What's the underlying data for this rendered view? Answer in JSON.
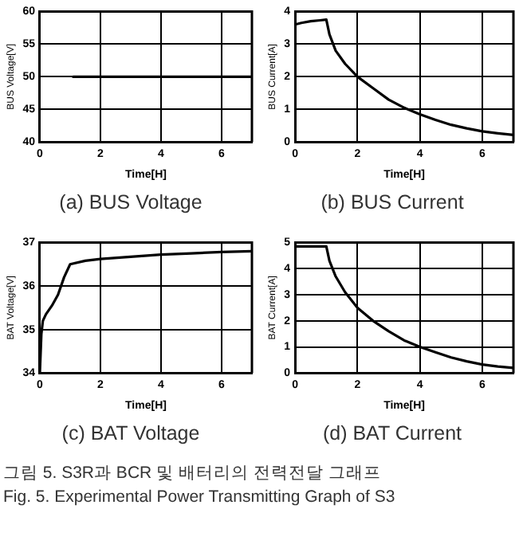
{
  "chart_data": [
    {
      "type": "line",
      "title": "(a) BUS Voltage",
      "xlabel": "Time[H]",
      "ylabel": "BUS Voltage[V]",
      "xlim": [
        0,
        7
      ],
      "xticks": [
        0,
        2,
        4,
        6
      ],
      "ylim": [
        40,
        60
      ],
      "yticks": [
        40,
        45,
        50,
        55,
        60
      ],
      "grid": true,
      "legend": false,
      "marker": "none",
      "line_style": "solid",
      "series": [
        {
          "color": "#000000",
          "x": [
            1.1,
            7
          ],
          "values": [
            50,
            50
          ]
        }
      ],
      "annotations": [
        "그림 5. S3R과 BCR 및 배터리의 전력전달 그래프",
        "Fig. 5. Experimental Power Transmitting Graph of S3"
      ]
    },
    {
      "type": "line",
      "title": "(b) BUS Current",
      "xlabel": "Time[H]",
      "ylabel": "BUS Current[A]",
      "xlim": [
        0,
        7
      ],
      "xticks": [
        0,
        2,
        4,
        6
      ],
      "ylim": [
        0,
        4
      ],
      "yticks": [
        0,
        1,
        2,
        3,
        4
      ],
      "grid": true,
      "legend": false,
      "marker": "none",
      "line_style": "solid",
      "series": [
        {
          "color": "#000000",
          "x": [
            0,
            0.2,
            0.5,
            0.8,
            1.0,
            1.1,
            1.3,
            1.6,
            2,
            2.5,
            3,
            3.5,
            4,
            4.5,
            5,
            5.5,
            6,
            6.5,
            7
          ],
          "values": [
            3.6,
            3.65,
            3.7,
            3.73,
            3.75,
            3.3,
            2.8,
            2.4,
            2.0,
            1.65,
            1.3,
            1.05,
            0.85,
            0.68,
            0.53,
            0.42,
            0.33,
            0.27,
            0.22
          ]
        }
      ]
    },
    {
      "type": "line",
      "title": "(c) BAT Voltage",
      "xlabel": "Time[H]",
      "ylabel": "BAT Voltage[V]",
      "xlim": [
        0,
        7
      ],
      "xticks": [
        0,
        2,
        4,
        6
      ],
      "ylim": [
        34,
        37
      ],
      "yticks": [
        34,
        35,
        36,
        37
      ],
      "grid": true,
      "legend": false,
      "marker": "none",
      "line_style": "solid",
      "series": [
        {
          "color": "#000000",
          "x": [
            0,
            0.05,
            0.1,
            0.2,
            0.4,
            0.6,
            0.8,
            1.0,
            1.5,
            2,
            3,
            4,
            5,
            6,
            7
          ],
          "values": [
            34.0,
            34.9,
            35.2,
            35.35,
            35.55,
            35.8,
            36.2,
            36.5,
            36.58,
            36.62,
            36.67,
            36.72,
            36.75,
            36.78,
            36.8
          ]
        }
      ]
    },
    {
      "type": "line",
      "title": "(d) BAT Current",
      "xlabel": "Time[H]",
      "ylabel": "BAT Current[A]",
      "xlim": [
        0,
        7
      ],
      "xticks": [
        0,
        2,
        4,
        6
      ],
      "ylim": [
        0,
        5
      ],
      "yticks": [
        0,
        1,
        2,
        3,
        4,
        5
      ],
      "grid": true,
      "legend": false,
      "marker": "none",
      "line_style": "solid",
      "series": [
        {
          "color": "#000000",
          "x": [
            0,
            1.0,
            1.1,
            1.3,
            1.6,
            2,
            2.5,
            3,
            3.5,
            4,
            4.5,
            5,
            5.5,
            6,
            6.5,
            7
          ],
          "values": [
            4.85,
            4.85,
            4.3,
            3.7,
            3.1,
            2.5,
            2.0,
            1.6,
            1.25,
            1.0,
            0.8,
            0.6,
            0.45,
            0.33,
            0.25,
            0.2
          ]
        }
      ]
    }
  ]
}
